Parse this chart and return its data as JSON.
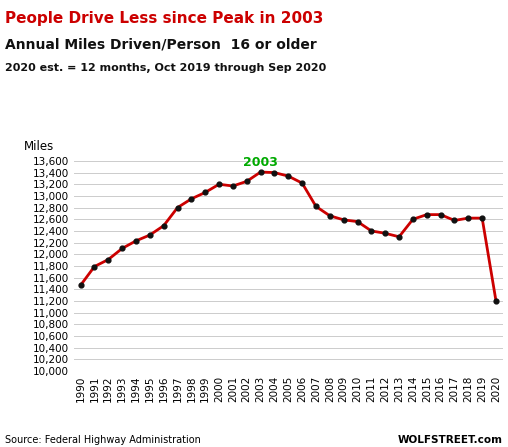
{
  "title_line1": "People Drive Less since Peak in 2003",
  "title_line2": "Annual Miles Driven/Person  16 or older",
  "title_line3": "2020 est. = 12 months, Oct 2019 through Sep 2020",
  "ylabel": "Miles",
  "source": "Source: Federal Highway Administration",
  "watermark": "WOLFSTREET.com",
  "annotation_2003": "2003",
  "years": [
    1990,
    1991,
    1992,
    1993,
    1994,
    1995,
    1996,
    1997,
    1998,
    1999,
    2000,
    2001,
    2002,
    2003,
    2004,
    2005,
    2006,
    2007,
    2008,
    2009,
    2010,
    2011,
    2012,
    2013,
    2014,
    2015,
    2016,
    2017,
    2018,
    2019,
    2020
  ],
  "miles": [
    11470,
    11790,
    11910,
    12100,
    12230,
    12330,
    12490,
    12800,
    12950,
    13060,
    13200,
    13170,
    13250,
    13410,
    13400,
    13340,
    13220,
    12820,
    12660,
    12590,
    12560,
    12400,
    12360,
    12300,
    12600,
    12680,
    12680,
    12580,
    12620,
    12620,
    11200
  ],
  "line_color": "#cc0000",
  "marker_color": "#111111",
  "title1_color": "#cc0000",
  "title2_color": "#111111",
  "annotation_color": "#00aa00",
  "ylim_min": 10000,
  "ylim_max": 13600,
  "ytick_step": 200,
  "bg_color": "#ffffff",
  "grid_color": "#cccccc",
  "fig_width": 5.08,
  "fig_height": 4.47,
  "dpi": 100
}
